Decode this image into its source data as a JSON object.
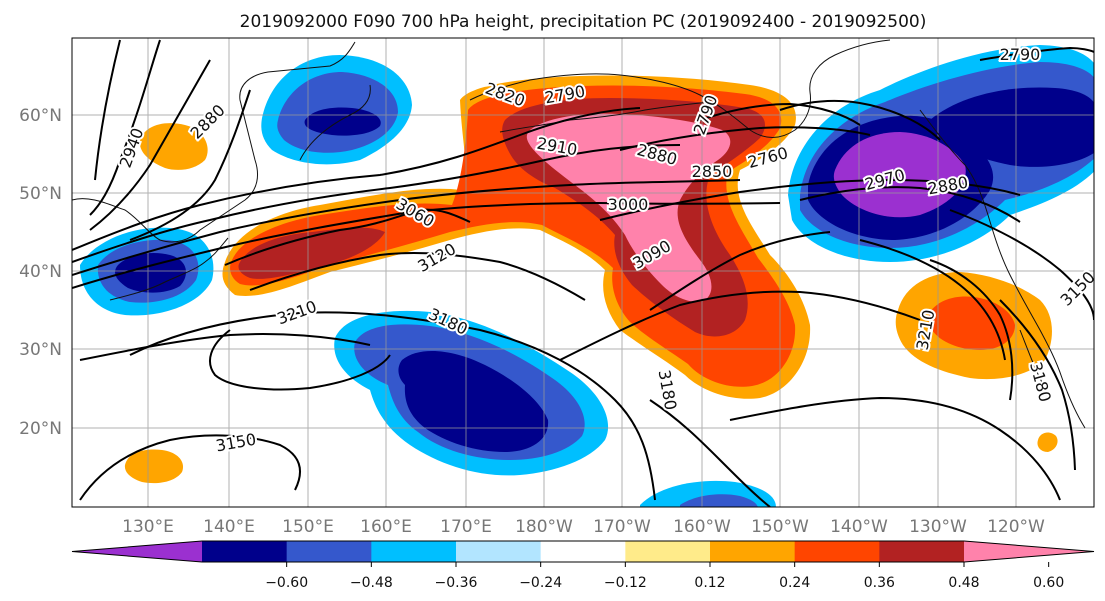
{
  "title": "2019092000 F090 700 hPa height, precipitation PC (2019092400 - 2019092500)",
  "map": {
    "lon_labels": [
      "130°E",
      "140°E",
      "150°E",
      "160°E",
      "170°E",
      "180°W",
      "170°W",
      "160°W",
      "150°W",
      "140°W",
      "130°W",
      "120°W"
    ],
    "lat_labels": [
      "60°N",
      "50°N",
      "40°N",
      "30°N",
      "20°N"
    ],
    "gridlines": true,
    "contour_labels": [
      "2790",
      "2820",
      "2880",
      "2940",
      "2910",
      "2880",
      "2850",
      "2790",
      "2760",
      "2970",
      "2790",
      "3000",
      "3060",
      "3090",
      "3120",
      "3210",
      "3180",
      "3180",
      "3150",
      "3210",
      "3150",
      "3180",
      "2880"
    ]
  },
  "colorbar": {
    "tick_labels": [
      "−0.60",
      "−0.48",
      "−0.36",
      "−0.24",
      "−0.12",
      "0.12",
      "0.24",
      "0.36",
      "0.48",
      "0.60"
    ],
    "colors": [
      "#9b30d0",
      "#00008b",
      "#3558cc",
      "#00bfff",
      "#b2e5ff",
      "#ffffff",
      "#ffeb8a",
      "#ffa500",
      "#ff4500",
      "#b22222",
      "#ff82ab"
    ]
  }
}
